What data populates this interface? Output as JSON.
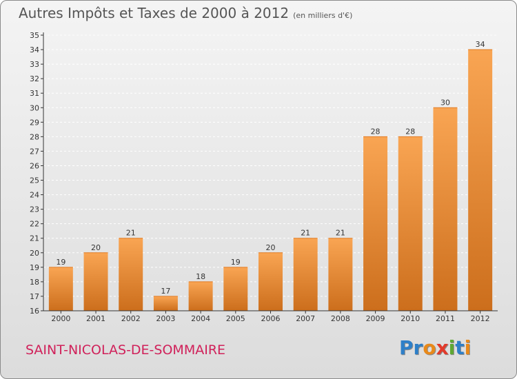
{
  "title": "Autres Impôts et Taxes de 2000 à 2012",
  "title_unit": "(en milliers d'€)",
  "commune": "SAINT-NICOLAS-DE-SOMMAIRE",
  "logo": {
    "text": "Proxiti",
    "letters": [
      {
        "char": "P",
        "color": "#2e7fc8"
      },
      {
        "char": "r",
        "color": "#2e7fc8"
      },
      {
        "char": "o",
        "color": "#e8891a"
      },
      {
        "char": "x",
        "color": "#e23a2b"
      },
      {
        "char": "i",
        "color": "#5ea832"
      },
      {
        "char": "t",
        "color": "#2e7fc8"
      },
      {
        "char": "i",
        "color": "#e8891a"
      }
    ]
  },
  "colors": {
    "bar_top": "#f9a553",
    "bar_bottom": "#cc6e1c",
    "grid": "#ffffff",
    "axis": "#333333",
    "title": "#555555",
    "commune": "#d0215a"
  },
  "chart_data": {
    "type": "bar",
    "categories": [
      "2000",
      "2001",
      "2002",
      "2003",
      "2004",
      "2005",
      "2006",
      "2007",
      "2008",
      "2009",
      "2010",
      "2011",
      "2012"
    ],
    "values": [
      19,
      20,
      21,
      17,
      18,
      19,
      20,
      21,
      21,
      28,
      28,
      30,
      34
    ],
    "data_labels": [
      "19",
      "20",
      "21",
      "17",
      "18",
      "19",
      "20",
      "21",
      "21",
      "28",
      "28",
      "30",
      "34"
    ],
    "ylim": [
      16,
      35
    ],
    "yticks": [
      16,
      17,
      18,
      19,
      20,
      21,
      22,
      23,
      24,
      25,
      26,
      27,
      28,
      29,
      30,
      31,
      32,
      33,
      34,
      35
    ],
    "grid": true,
    "xlabel": "",
    "ylabel": ""
  }
}
